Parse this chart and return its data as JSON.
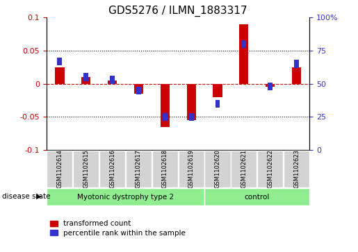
{
  "title": "GDS5276 / ILMN_1883317",
  "samples": [
    "GSM1102614",
    "GSM1102615",
    "GSM1102616",
    "GSM1102617",
    "GSM1102618",
    "GSM1102619",
    "GSM1102620",
    "GSM1102621",
    "GSM1102622",
    "GSM1102623"
  ],
  "red_values": [
    0.025,
    0.01,
    0.005,
    -0.015,
    -0.065,
    -0.055,
    -0.02,
    0.09,
    -0.005,
    0.025
  ],
  "blue_pct": [
    67,
    55,
    53,
    45,
    25,
    25,
    35,
    80,
    48,
    65
  ],
  "ylim": [
    -0.1,
    0.1
  ],
  "yticks_left": [
    -0.1,
    -0.05,
    0.0,
    0.05,
    0.1
  ],
  "yticks_left_labels": [
    "-0.1",
    "-0.05",
    "0",
    "0.05",
    "0.1"
  ],
  "yticks_right": [
    0,
    25,
    50,
    75,
    100
  ],
  "yticks_right_labels": [
    "0",
    "25",
    "50",
    "75",
    "100%"
  ],
  "groups": [
    {
      "label": "Myotonic dystrophy type 2",
      "start": 0,
      "end": 6,
      "color": "#90EE90"
    },
    {
      "label": "control",
      "start": 6,
      "end": 10,
      "color": "#90EE90"
    }
  ],
  "disease_state_label": "disease state",
  "legend_red": "transformed count",
  "legend_blue": "percentile rank within the sample",
  "red_color": "#CC0000",
  "blue_color": "#3333CC",
  "sample_box_color": "#D3D3D3",
  "zero_line_color": "#CC0000",
  "title_fontsize": 11,
  "tick_fontsize": 8
}
